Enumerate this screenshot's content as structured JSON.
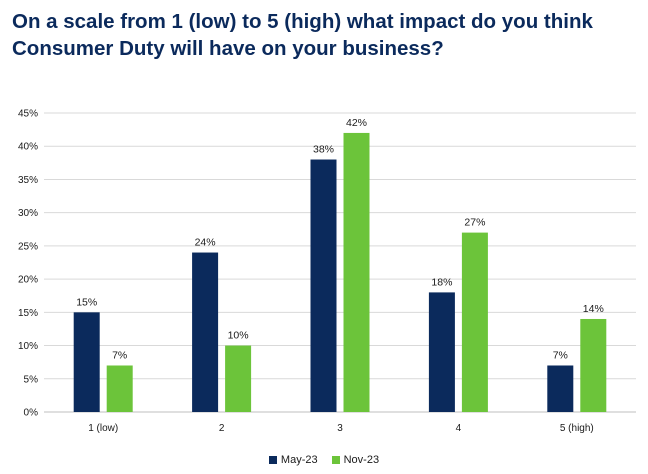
{
  "title": "On a scale from 1 (low) to 5 (high) what impact do you think Consumer Duty will have on your business?",
  "chart_data": {
    "type": "bar",
    "categories": [
      "1 (low)",
      "2",
      "3",
      "4",
      "5 (high)"
    ],
    "series": [
      {
        "name": "May-23",
        "values": [
          15,
          24,
          38,
          18,
          7
        ],
        "labels": [
          "15%",
          "24%",
          "38%",
          "18%",
          "7%"
        ],
        "color": "#0b2a5c"
      },
      {
        "name": "Nov-23",
        "values": [
          7,
          10,
          42,
          27,
          14
        ],
        "labels": [
          "7%",
          "10%",
          "42%",
          "27%",
          "14%"
        ],
        "color": "#6cc43a"
      }
    ],
    "ylim": [
      0,
      45
    ],
    "yticks": [
      0,
      5,
      10,
      15,
      20,
      25,
      30,
      35,
      40,
      45
    ],
    "ytick_labels": [
      "0%",
      "5%",
      "10%",
      "15%",
      "20%",
      "25%",
      "30%",
      "35%",
      "40%",
      "45%"
    ],
    "xlabel": "",
    "ylabel": "",
    "grid": true,
    "legend": "bottom-center"
  }
}
